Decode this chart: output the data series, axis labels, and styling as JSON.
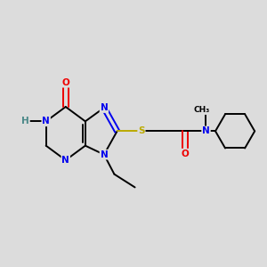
{
  "bg_color": "#dcdcdc",
  "atom_colors": {
    "C": "#000000",
    "N": "#0000ee",
    "O": "#ee0000",
    "S": "#bbaa00",
    "H": "#4a8888"
  },
  "bond_color": "#000000",
  "bond_width": 1.4,
  "font_size": 7.5
}
